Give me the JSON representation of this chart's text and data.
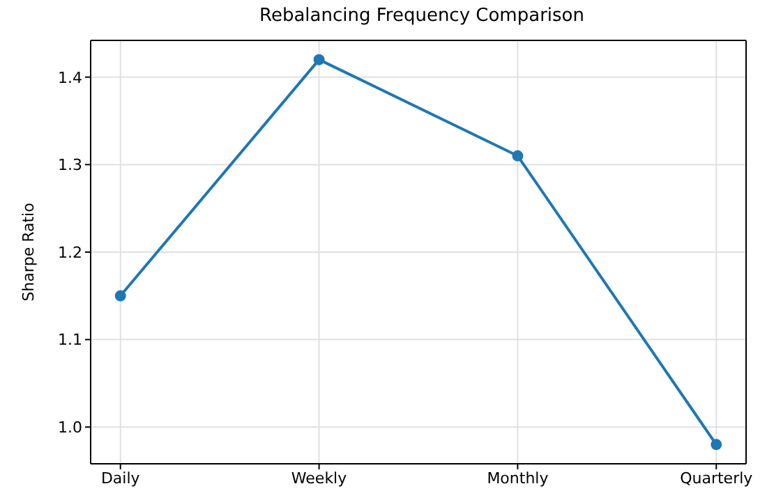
{
  "chart_data": {
    "type": "line",
    "title": "Rebalancing Frequency Comparison",
    "ylabel": "Sharpe Ratio",
    "categories": [
      "Daily",
      "Weekly",
      "Monthly",
      "Quarterly"
    ],
    "series": [
      {
        "color": "#1f77b4",
        "values": [
          1.15,
          1.42,
          1.31,
          0.98
        ]
      }
    ],
    "ylim": [
      0.958,
      1.442
    ],
    "yticks": [
      {
        "value": 1.0,
        "label": "1.0"
      },
      1.1,
      1.2,
      1.3,
      1.4
    ],
    "grid": true,
    "marker": "circle",
    "line_style": "solid",
    "legend": false
  }
}
